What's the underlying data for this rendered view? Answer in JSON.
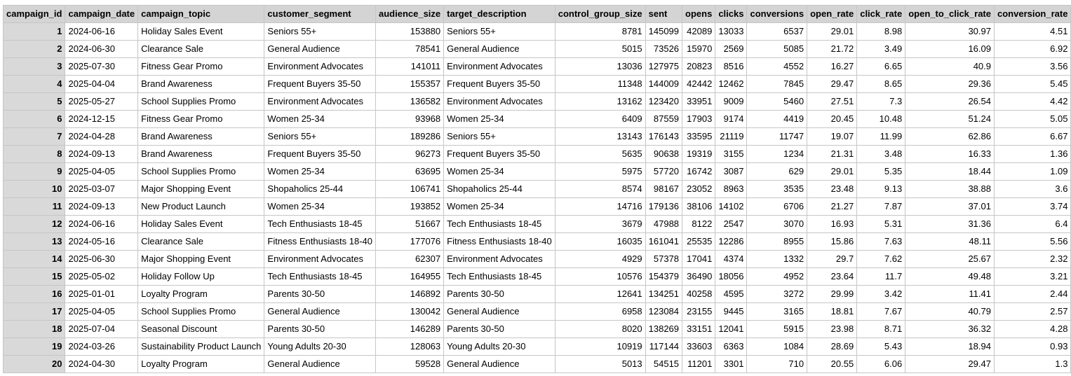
{
  "columns": [
    {
      "key": "campaign_id",
      "label": "campaign_id",
      "align": "right",
      "rowhead": true
    },
    {
      "key": "campaign_date",
      "label": "campaign_date",
      "align": "left"
    },
    {
      "key": "campaign_topic",
      "label": "campaign_topic",
      "align": "left"
    },
    {
      "key": "customer_segment",
      "label": "customer_segment",
      "align": "left"
    },
    {
      "key": "audience_size",
      "label": "audience_size",
      "align": "right"
    },
    {
      "key": "target_description",
      "label": "target_description",
      "align": "left"
    },
    {
      "key": "control_group_size",
      "label": "control_group_size",
      "align": "right"
    },
    {
      "key": "sent",
      "label": "sent",
      "align": "right"
    },
    {
      "key": "opens",
      "label": "opens",
      "align": "right"
    },
    {
      "key": "clicks",
      "label": "clicks",
      "align": "right"
    },
    {
      "key": "conversions",
      "label": "conversions",
      "align": "right"
    },
    {
      "key": "open_rate",
      "label": "open_rate",
      "align": "right"
    },
    {
      "key": "click_rate",
      "label": "click_rate",
      "align": "right"
    },
    {
      "key": "open_to_click_rate",
      "label": "open_to_click_rate",
      "align": "right"
    },
    {
      "key": "conversion_rate",
      "label": "conversion_rate",
      "align": "right"
    }
  ],
  "rows": [
    [
      "1",
      "2024-06-16",
      "Holiday Sales Event",
      "Seniors 55+",
      "153880",
      "Seniors 55+",
      "8781",
      "145099",
      "42089",
      "13033",
      "6537",
      "29.01",
      "8.98",
      "30.97",
      "4.51"
    ],
    [
      "2",
      "2024-06-30",
      "Clearance Sale",
      "General Audience",
      "78541",
      "General Audience",
      "5015",
      "73526",
      "15970",
      "2569",
      "5085",
      "21.72",
      "3.49",
      "16.09",
      "6.92"
    ],
    [
      "3",
      "2025-07-30",
      "Fitness Gear Promo",
      "Environment Advocates",
      "141011",
      "Environment Advocates",
      "13036",
      "127975",
      "20823",
      "8516",
      "4552",
      "16.27",
      "6.65",
      "40.9",
      "3.56"
    ],
    [
      "4",
      "2025-04-04",
      "Brand Awareness",
      "Frequent Buyers 35-50",
      "155357",
      "Frequent Buyers 35-50",
      "11348",
      "144009",
      "42442",
      "12462",
      "7845",
      "29.47",
      "8.65",
      "29.36",
      "5.45"
    ],
    [
      "5",
      "2025-05-27",
      "School Supplies Promo",
      "Environment Advocates",
      "136582",
      "Environment Advocates",
      "13162",
      "123420",
      "33951",
      "9009",
      "5460",
      "27.51",
      "7.3",
      "26.54",
      "4.42"
    ],
    [
      "6",
      "2024-12-15",
      "Fitness Gear Promo",
      "Women 25-34",
      "93968",
      "Women 25-34",
      "6409",
      "87559",
      "17903",
      "9174",
      "4419",
      "20.45",
      "10.48",
      "51.24",
      "5.05"
    ],
    [
      "7",
      "2024-04-28",
      "Brand Awareness",
      "Seniors 55+",
      "189286",
      "Seniors 55+",
      "13143",
      "176143",
      "33595",
      "21119",
      "11747",
      "19.07",
      "11.99",
      "62.86",
      "6.67"
    ],
    [
      "8",
      "2024-09-13",
      "Brand Awareness",
      "Frequent Buyers 35-50",
      "96273",
      "Frequent Buyers 35-50",
      "5635",
      "90638",
      "19319",
      "3155",
      "1234",
      "21.31",
      "3.48",
      "16.33",
      "1.36"
    ],
    [
      "9",
      "2025-04-05",
      "School Supplies Promo",
      "Women 25-34",
      "63695",
      "Women 25-34",
      "5975",
      "57720",
      "16742",
      "3087",
      "629",
      "29.01",
      "5.35",
      "18.44",
      "1.09"
    ],
    [
      "10",
      "2025-03-07",
      "Major Shopping Event",
      "Shopaholics 25-44",
      "106741",
      "Shopaholics 25-44",
      "8574",
      "98167",
      "23052",
      "8963",
      "3535",
      "23.48",
      "9.13",
      "38.88",
      "3.6"
    ],
    [
      "11",
      "2024-09-13",
      "New Product Launch",
      "Women 25-34",
      "193852",
      "Women 25-34",
      "14716",
      "179136",
      "38106",
      "14102",
      "6706",
      "21.27",
      "7.87",
      "37.01",
      "3.74"
    ],
    [
      "12",
      "2024-06-16",
      "Holiday Sales Event",
      "Tech Enthusiasts 18-45",
      "51667",
      "Tech Enthusiasts 18-45",
      "3679",
      "47988",
      "8122",
      "2547",
      "3070",
      "16.93",
      "5.31",
      "31.36",
      "6.4"
    ],
    [
      "13",
      "2024-05-16",
      "Clearance Sale",
      "Fitness Enthusiasts 18-40",
      "177076",
      "Fitness Enthusiasts 18-40",
      "16035",
      "161041",
      "25535",
      "12286",
      "8955",
      "15.86",
      "7.63",
      "48.11",
      "5.56"
    ],
    [
      "14",
      "2025-06-30",
      "Major Shopping Event",
      "Environment Advocates",
      "62307",
      "Environment Advocates",
      "4929",
      "57378",
      "17041",
      "4374",
      "1332",
      "29.7",
      "7.62",
      "25.67",
      "2.32"
    ],
    [
      "15",
      "2025-05-02",
      "Holiday Follow Up",
      "Tech Enthusiasts 18-45",
      "164955",
      "Tech Enthusiasts 18-45",
      "10576",
      "154379",
      "36490",
      "18056",
      "4952",
      "23.64",
      "11.7",
      "49.48",
      "3.21"
    ],
    [
      "16",
      "2025-01-01",
      "Loyalty Program",
      "Parents 30-50",
      "146892",
      "Parents 30-50",
      "12641",
      "134251",
      "40258",
      "4595",
      "3272",
      "29.99",
      "3.42",
      "11.41",
      "2.44"
    ],
    [
      "17",
      "2025-04-05",
      "School Supplies Promo",
      "General Audience",
      "130042",
      "General Audience",
      "6958",
      "123084",
      "23155",
      "9445",
      "3165",
      "18.81",
      "7.67",
      "40.79",
      "2.57"
    ],
    [
      "18",
      "2025-07-04",
      "Seasonal Discount",
      "Parents 30-50",
      "146289",
      "Parents 30-50",
      "8020",
      "138269",
      "33151",
      "12041",
      "5915",
      "23.98",
      "8.71",
      "36.32",
      "4.28"
    ],
    [
      "19",
      "2024-03-26",
      "Sustainability Product Launch",
      "Young Adults 20-30",
      "128063",
      "Young Adults 20-30",
      "10919",
      "117144",
      "33603",
      "6363",
      "1084",
      "28.69",
      "5.43",
      "18.94",
      "0.93"
    ],
    [
      "20",
      "2024-04-30",
      "Loyalty Program",
      "General Audience",
      "59528",
      "General Audience",
      "5013",
      "54515",
      "11201",
      "3301",
      "710",
      "20.55",
      "6.06",
      "29.47",
      "1.3"
    ]
  ],
  "colors": {
    "header_bg": "#d4d4d4",
    "rowhead_bg": "#d9d9d9",
    "grid_line": "#c6c6c6"
  }
}
